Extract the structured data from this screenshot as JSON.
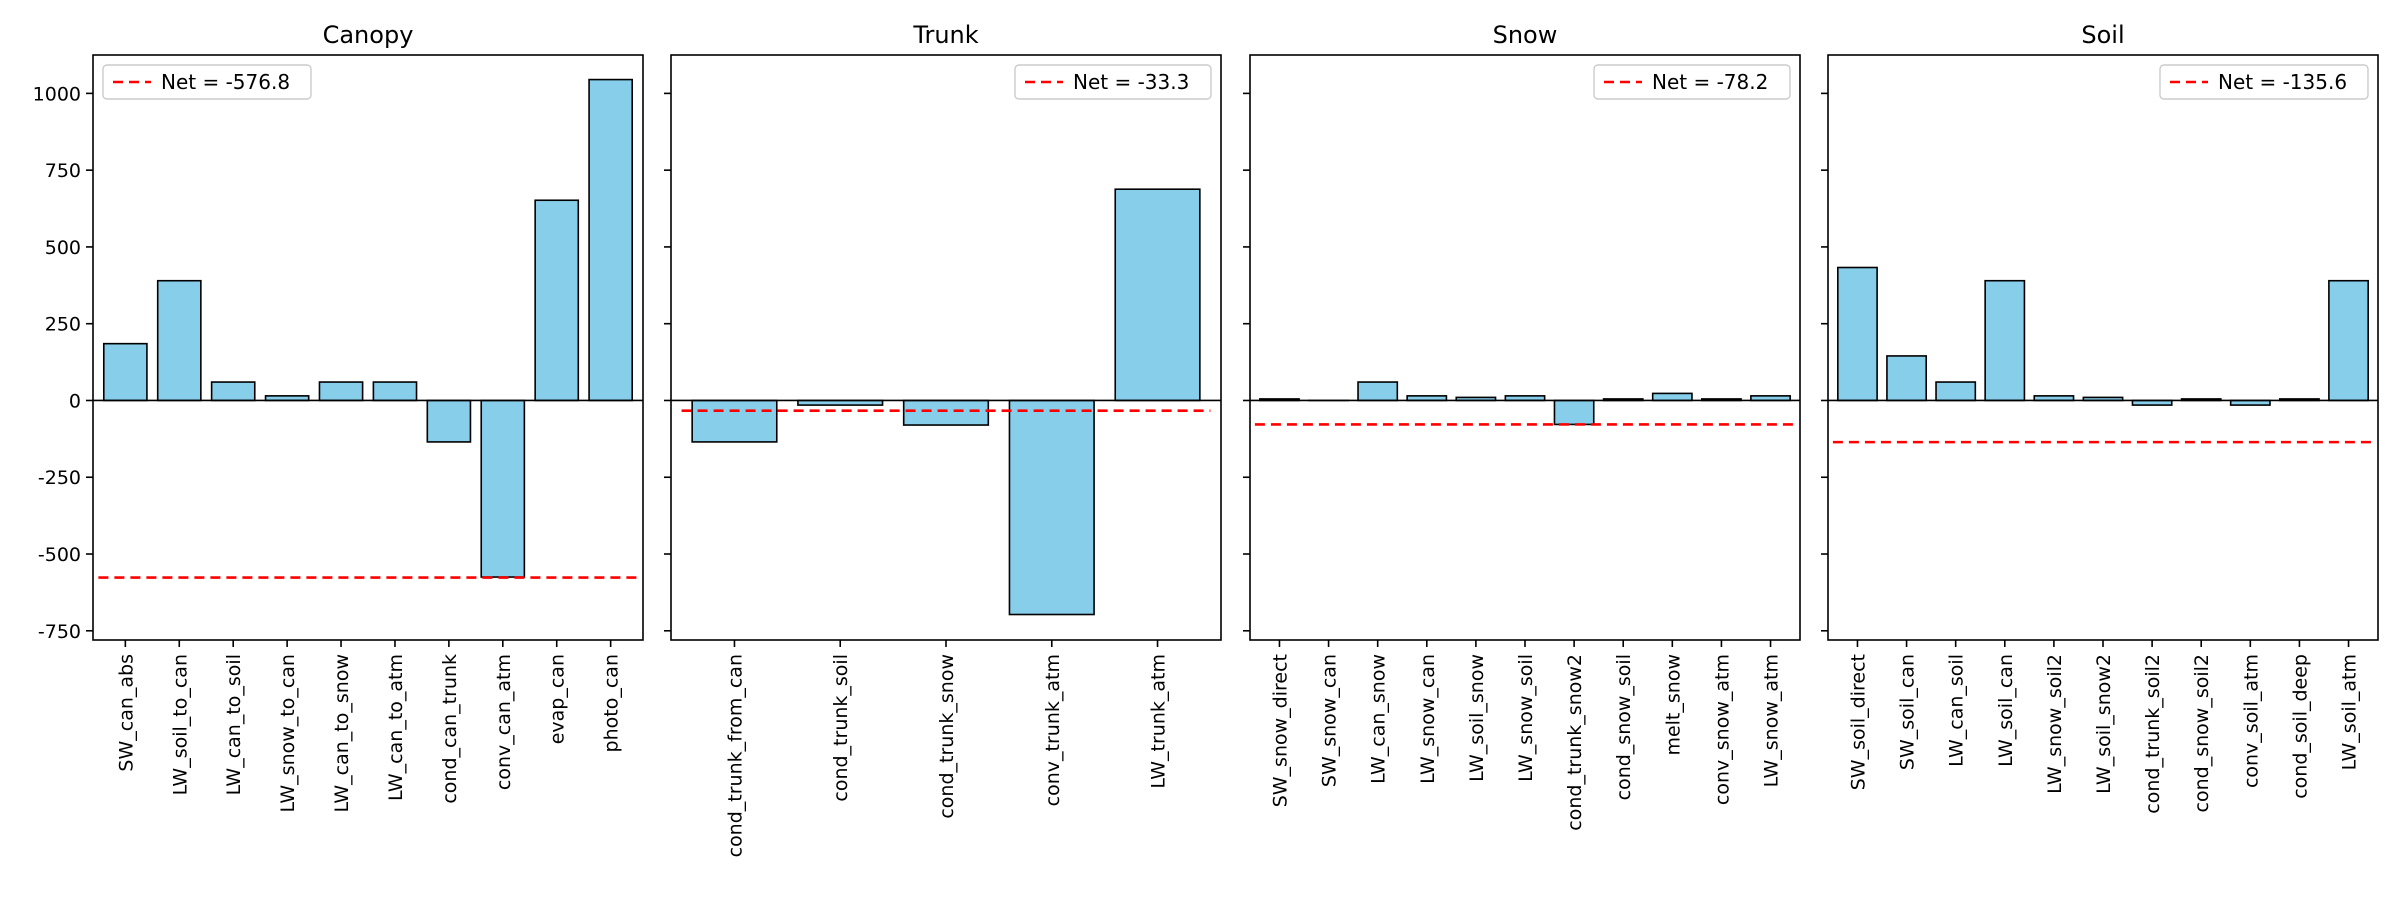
{
  "chart_data": [
    {
      "type": "bar",
      "title": "Canopy",
      "categories": [
        "SW_can_abs",
        "LW_soil_to_can",
        "LW_can_to_soil",
        "LW_snow_to_can",
        "LW_can_to_snow",
        "LW_can_to_atm",
        "cond_can_trunk",
        "conv_can_atm",
        "evap_can",
        "photo_can"
      ],
      "values": [
        185,
        390,
        60,
        15,
        60,
        60,
        -135,
        -575,
        652,
        1045
      ],
      "net": -576.8,
      "legend": "Net = -576.8",
      "legend_position": "upper-left",
      "ylim": [
        -780,
        1125
      ],
      "yticks": [
        -750,
        -500,
        -250,
        0,
        250,
        500,
        750,
        1000
      ],
      "show_y_tick_labels": true,
      "bar_color": "#87CEEB",
      "edge_color": "#000000",
      "net_color": "#FF0000"
    },
    {
      "type": "bar",
      "title": "Trunk",
      "categories": [
        "cond_trunk_from_can",
        "cond_trunk_soil",
        "cond_trunk_snow",
        "conv_trunk_atm",
        "LW_trunk_atm"
      ],
      "values": [
        -135,
        -15,
        -80,
        -697,
        688
      ],
      "net": -33.3,
      "legend": "Net = -33.3",
      "legend_position": "upper-right",
      "ylim": [
        -780,
        1125
      ],
      "yticks": [
        -750,
        -500,
        -250,
        0,
        250,
        500,
        750,
        1000
      ],
      "show_y_tick_labels": false,
      "bar_color": "#87CEEB",
      "edge_color": "#000000",
      "net_color": "#FF0000"
    },
    {
      "type": "bar",
      "title": "Snow",
      "categories": [
        "SW_snow_direct",
        "SW_snow_can",
        "LW_can_snow",
        "LW_snow_can",
        "LW_soil_snow",
        "LW_snow_soil",
        "cond_trunk_snow2",
        "cond_snow_soil",
        "melt_snow",
        "conv_snow_atm",
        "LW_snow_atm"
      ],
      "values": [
        5,
        0,
        60,
        15,
        10,
        15,
        -78,
        5,
        23,
        5,
        15
      ],
      "net": -78.2,
      "legend": "Net = -78.2",
      "legend_position": "upper-right",
      "ylim": [
        -780,
        1125
      ],
      "yticks": [
        -750,
        -500,
        -250,
        0,
        250,
        500,
        750,
        1000
      ],
      "show_y_tick_labels": false,
      "bar_color": "#87CEEB",
      "edge_color": "#000000",
      "net_color": "#FF0000"
    },
    {
      "type": "bar",
      "title": "Soil",
      "categories": [
        "SW_soil_direct",
        "SW_soil_can",
        "LW_can_soil",
        "LW_soil_can",
        "LW_snow_soil2",
        "LW_soil_snow2",
        "cond_trunk_soil2",
        "cond_snow_soil2",
        "conv_soil_atm",
        "cond_soil_deep",
        "LW_soil_atm"
      ],
      "values": [
        433,
        145,
        60,
        390,
        15,
        10,
        -15,
        5,
        -15,
        5,
        390
      ],
      "net": -135.6,
      "legend": "Net = -135.6",
      "legend_position": "upper-right",
      "ylim": [
        -780,
        1125
      ],
      "yticks": [
        -750,
        -500,
        -250,
        0,
        250,
        500,
        750,
        1000
      ],
      "show_y_tick_labels": false,
      "bar_color": "#87CEEB",
      "edge_color": "#000000",
      "net_color": "#FF0000"
    }
  ]
}
